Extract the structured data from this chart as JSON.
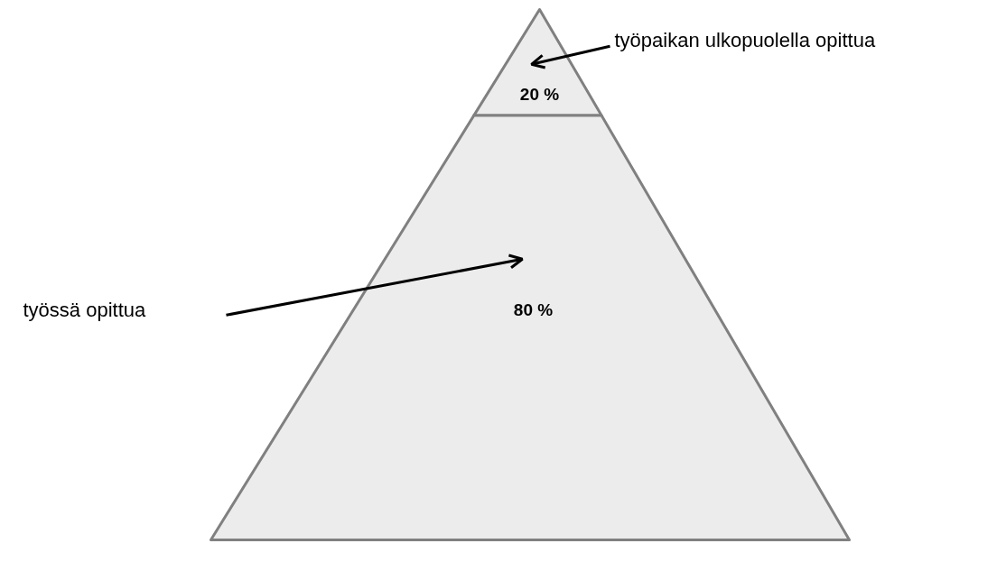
{
  "chart_data": {
    "type": "other",
    "categories": [
      "työpaikan ulkopuolella opittua",
      "työssä opittua"
    ],
    "values": [
      20,
      80
    ],
    "value_labels": [
      "20 %",
      "80 %"
    ],
    "colors": [
      "#ececec",
      "#ececec"
    ]
  }
}
